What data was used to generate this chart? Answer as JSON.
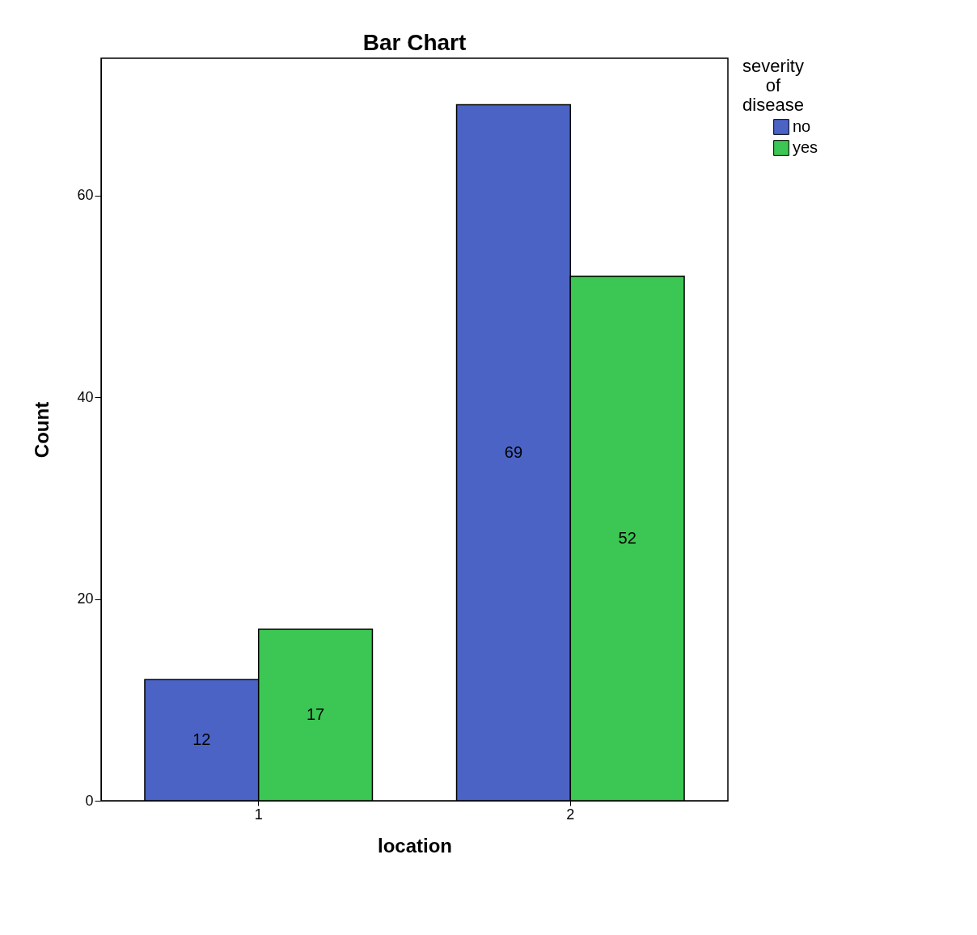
{
  "chart_data": {
    "type": "bar",
    "title": "Bar Chart",
    "xlabel": "location",
    "ylabel": "Count",
    "legend_title": "severity of disease",
    "categories": [
      "1",
      "2"
    ],
    "series": [
      {
        "name": "no",
        "color": "#4a63c4",
        "values": [
          12,
          69
        ]
      },
      {
        "name": "yes",
        "color": "#3cc653",
        "values": [
          17,
          52
        ]
      }
    ],
    "ylim": [
      0,
      73.6
    ],
    "yticks": [
      0,
      20,
      40,
      60
    ],
    "grid": false,
    "legend": "top right",
    "data_labels": true
  }
}
